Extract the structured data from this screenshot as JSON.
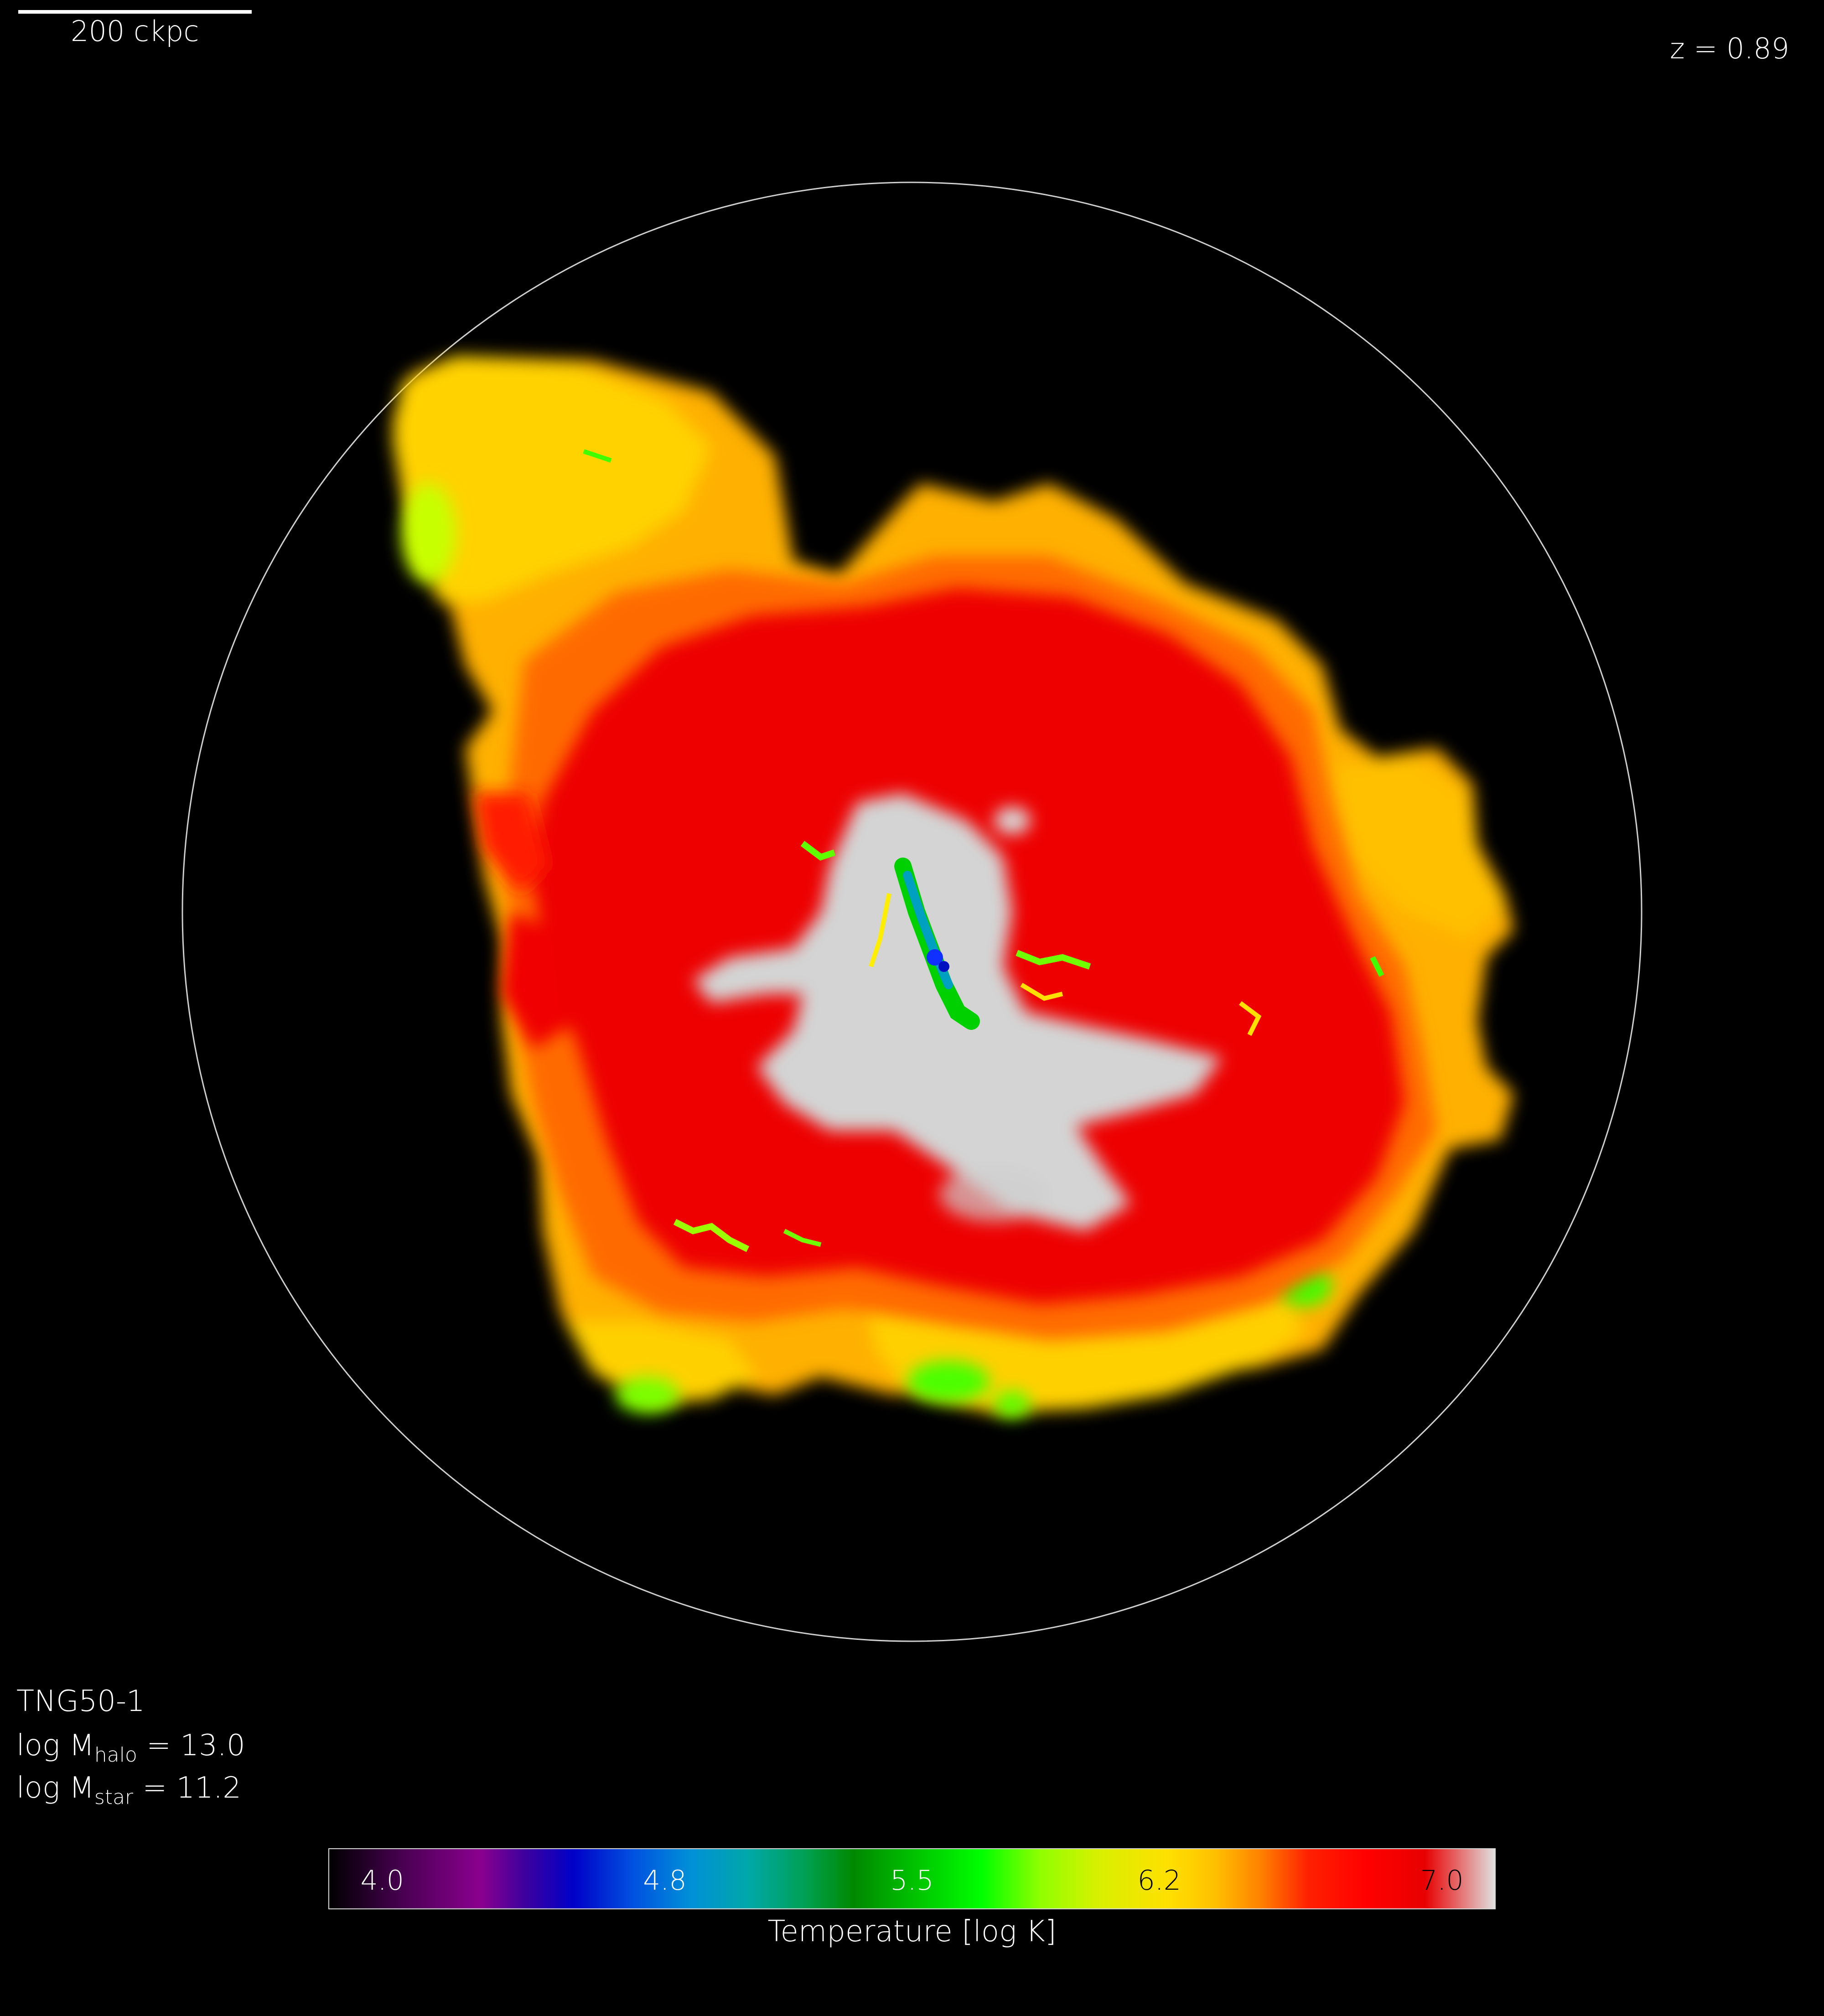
{
  "scalebar": {
    "label": "200 ckpc"
  },
  "redshift": "z = 0.89",
  "info": {
    "simulation": "TNG50-1",
    "mhalo": {
      "prefix": "log M",
      "sub": "halo",
      "suffix": " = 13.0"
    },
    "mstar": {
      "prefix": "log M",
      "sub": "star",
      "suffix": " = 11.2"
    }
  },
  "colorbar": {
    "ticks": [
      {
        "label": "4.0",
        "value": 4.0,
        "color": "#ffffff"
      },
      {
        "label": "4.8",
        "value": 4.8,
        "color": "#ffffff"
      },
      {
        "label": "5.5",
        "value": 5.5,
        "color": "#ffffff"
      },
      {
        "label": "6.2",
        "value": 6.2,
        "color": "#000000"
      },
      {
        "label": "7.0",
        "value": 7.0,
        "color": "#000000"
      }
    ],
    "range": [
      3.85,
      7.15
    ],
    "label": "Temperature [log K]"
  },
  "colors": {
    "background": "#000000",
    "circle": "#cfcfcf",
    "hot_core": "#d6d6d6",
    "red": "#e80000",
    "orange": "#ff8c00",
    "yellow": "#ffd400",
    "green": "#3cff00",
    "blue": "#1040ff"
  }
}
